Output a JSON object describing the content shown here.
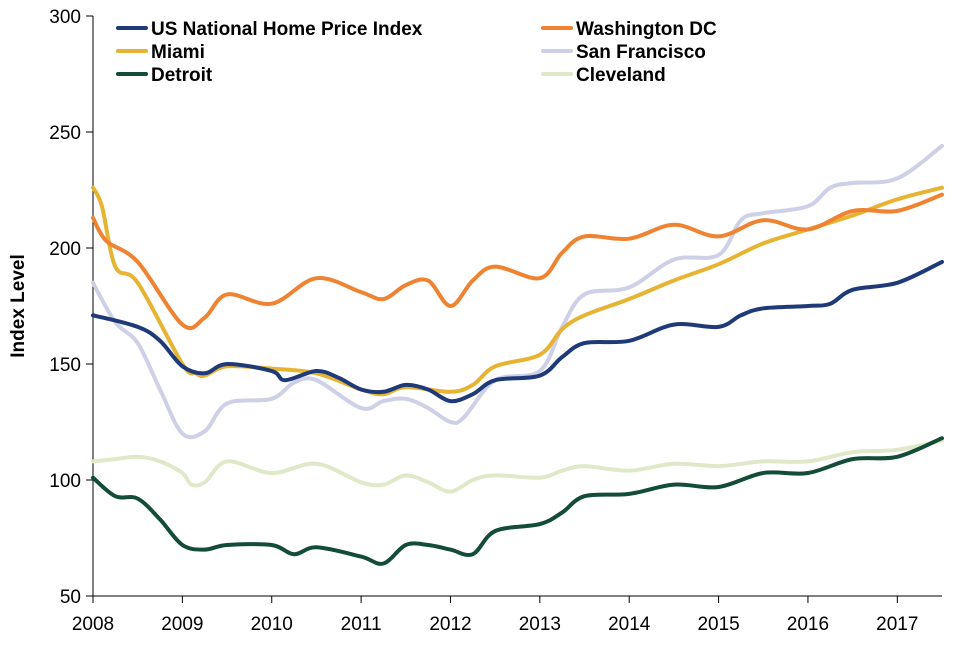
{
  "chart_data": {
    "type": "line",
    "ylabel": "Index Level",
    "xlabel": "",
    "title": "",
    "xlim": [
      2008,
      2017.5
    ],
    "ylim": [
      50,
      300
    ],
    "xticks": [
      "2008",
      "2009",
      "2010",
      "2011",
      "2012",
      "2013",
      "2014",
      "2015",
      "2016",
      "2017"
    ],
    "yticks": [
      "50",
      "100",
      "150",
      "200",
      "250",
      "300"
    ],
    "grid": false,
    "legend_placement": "top",
    "series": [
      {
        "name": "US National Home Price Index",
        "color": "#1f3a78",
        "x": [
          2008,
          2008.5,
          2008.75,
          2009,
          2009.25,
          2009.5,
          2010,
          2010.15,
          2010.5,
          2010.75,
          2011,
          2011.25,
          2011.5,
          2011.75,
          2012,
          2012.25,
          2012.5,
          2013,
          2013.25,
          2013.5,
          2014,
          2014.5,
          2015,
          2015.25,
          2015.5,
          2016,
          2016.25,
          2016.5,
          2017,
          2017.5
        ],
        "y": [
          171,
          166,
          160,
          149,
          146,
          150,
          147,
          143,
          147,
          144,
          139,
          138,
          141,
          139,
          134,
          137,
          143,
          145,
          153,
          159,
          160,
          167,
          166,
          171,
          174,
          175,
          176,
          182,
          185,
          194
        ]
      },
      {
        "name": "Washington DC",
        "color": "#ef8331",
        "x": [
          2008,
          2008.15,
          2008.5,
          2009,
          2009.25,
          2009.5,
          2010,
          2010.5,
          2011,
          2011.25,
          2011.5,
          2011.75,
          2012,
          2012.25,
          2012.5,
          2013,
          2013.25,
          2013.5,
          2014,
          2014.5,
          2015,
          2015.5,
          2016,
          2016.5,
          2017,
          2017.5
        ],
        "y": [
          213,
          203,
          194,
          167,
          170,
          180,
          176,
          187,
          181,
          178,
          184,
          186,
          175,
          186,
          192,
          187,
          198,
          205,
          204,
          210,
          205,
          212,
          208,
          216,
          216,
          223
        ]
      },
      {
        "name": "Miami",
        "color": "#e6b432",
        "x": [
          2008,
          2008.1,
          2008.25,
          2008.5,
          2009,
          2009.15,
          2009.25,
          2009.5,
          2010,
          2010.5,
          2011,
          2011.25,
          2011.5,
          2012,
          2012.25,
          2012.5,
          2013,
          2013.25,
          2013.5,
          2014,
          2014.5,
          2015,
          2015.5,
          2016,
          2016.5,
          2017,
          2017.5
        ],
        "y": [
          226,
          218,
          192,
          185,
          150,
          146,
          145,
          149,
          148,
          146,
          139,
          137,
          140,
          138,
          141,
          149,
          154,
          165,
          171,
          178,
          186,
          193,
          202,
          208,
          214,
          221,
          226
        ]
      },
      {
        "name": "San Francisco",
        "color": "#cdd0e6",
        "x": [
          2008,
          2008.25,
          2008.5,
          2008.75,
          2009,
          2009.25,
          2009.5,
          2010,
          2010.25,
          2010.5,
          2011,
          2011.25,
          2011.5,
          2011.75,
          2012,
          2012.15,
          2012.5,
          2013,
          2013.25,
          2013.5,
          2014,
          2014.5,
          2015,
          2015.25,
          2015.5,
          2016,
          2016.25,
          2016.5,
          2017,
          2017.5
        ],
        "y": [
          185,
          168,
          159,
          139,
          120,
          121,
          133,
          135,
          142,
          143,
          131,
          134,
          135,
          131,
          125,
          127,
          143,
          147,
          166,
          180,
          183,
          195,
          197,
          212,
          215,
          218,
          226,
          228,
          230,
          244
        ]
      },
      {
        "name": "Detroit",
        "color": "#134c38",
        "x": [
          2008,
          2008.25,
          2008.5,
          2008.75,
          2009,
          2009.25,
          2009.5,
          2010,
          2010.25,
          2010.5,
          2011,
          2011.25,
          2011.5,
          2011.75,
          2012,
          2012.25,
          2012.5,
          2013,
          2013.25,
          2013.5,
          2014,
          2014.5,
          2015,
          2015.5,
          2016,
          2016.5,
          2017,
          2017.5
        ],
        "y": [
          101,
          93,
          92,
          83,
          72,
          70,
          72,
          72,
          68,
          71,
          67,
          64,
          72,
          72,
          70,
          68,
          78,
          81,
          86,
          93,
          94,
          98,
          97,
          103,
          103,
          109,
          110,
          118
        ]
      },
      {
        "name": "Cleveland",
        "color": "#dfe9c8",
        "x": [
          2008,
          2008.25,
          2008.5,
          2008.75,
          2009,
          2009.1,
          2009.25,
          2009.5,
          2010,
          2010.5,
          2011,
          2011.25,
          2011.5,
          2011.75,
          2012,
          2012.25,
          2012.5,
          2013,
          2013.25,
          2013.5,
          2014,
          2014.5,
          2015,
          2015.5,
          2016,
          2016.5,
          2017,
          2017.5
        ],
        "y": [
          108,
          109,
          110,
          108,
          103,
          98,
          99,
          108,
          103,
          107,
          99,
          98,
          102,
          99,
          95,
          100,
          102,
          101,
          104,
          106,
          104,
          107,
          106,
          108,
          108,
          112,
          113,
          117
        ]
      }
    ]
  }
}
